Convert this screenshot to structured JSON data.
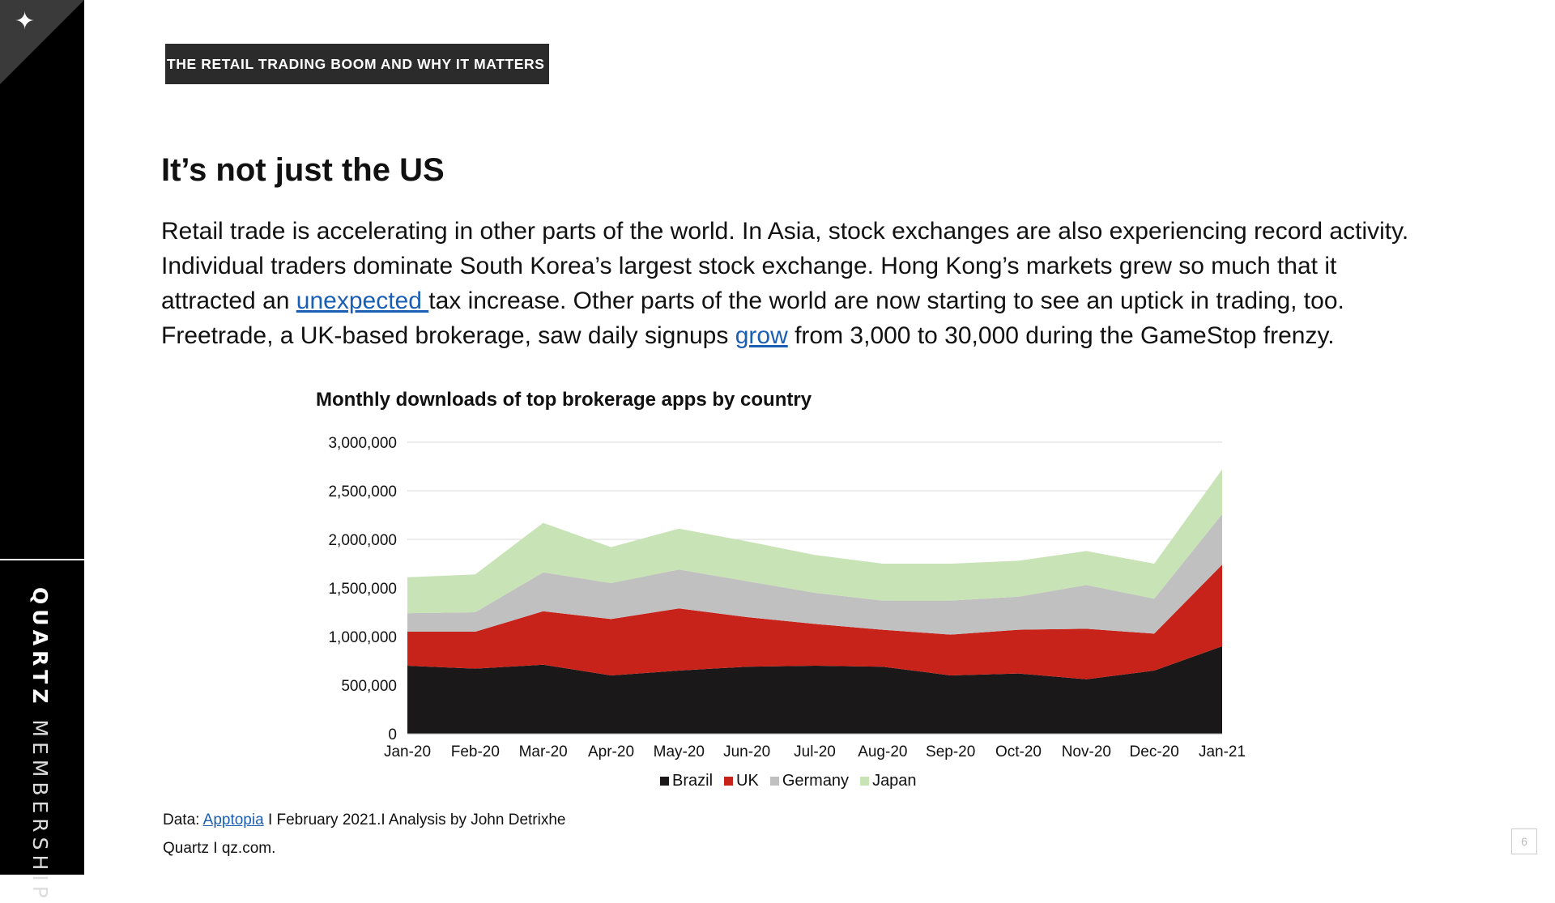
{
  "sidebar": {
    "brand_bold": "QUARTZ",
    "brand_rest": "MEMBERSHIP"
  },
  "header": {
    "kicker": "THE RETAIL TRADING BOOM AND WHY IT MATTERS"
  },
  "main": {
    "title": "It’s not just the US",
    "para_part1": "Retail trade is accelerating in other parts of the world. In Asia, stock exchanges are also experiencing record activity. Individual traders dominate South Korea’s largest stock exchange. Hong Kong’s markets grew so much that it attracted an ",
    "link1": "unexpected ",
    "para_part2": "tax increase. Other parts of the world are now starting to see an uptick in trading, too. Freetrade, a UK-based brokerage, saw daily signups ",
    "link2": "grow",
    "para_part3": " from 3,000 to 30,000 during the GameStop frenzy."
  },
  "footer": {
    "source_prefix": "Data: ",
    "source_link": "Apptopia",
    "source_suffix": " I February 2021.I Analysis by John Detrixhe",
    "credit": "Quartz I qz.com.",
    "page_number": "6"
  },
  "chart_data": {
    "type": "area",
    "stacked": true,
    "title": "Monthly downloads of top brokerage apps by country",
    "categories": [
      "Jan-20",
      "Feb-20",
      "Mar-20",
      "Apr-20",
      "May-20",
      "Jun-20",
      "Jul-20",
      "Aug-20",
      "Sep-20",
      "Oct-20",
      "Nov-20",
      "Dec-20",
      "Jan-21"
    ],
    "y_ticks": [
      "0",
      "500,000",
      "1,000,000",
      "1,500,000",
      "2,000,000",
      "2,500,000",
      "3,000,000"
    ],
    "ylim": [
      0,
      3000000
    ],
    "grid": true,
    "legend_position": "bottom",
    "series": [
      {
        "name": "Brazil",
        "color": "#1a1818",
        "values": [
          700000,
          670000,
          710000,
          600000,
          650000,
          690000,
          700000,
          690000,
          600000,
          620000,
          560000,
          650000,
          900000
        ]
      },
      {
        "name": "UK",
        "color": "#c8231b",
        "values": [
          350000,
          380000,
          550000,
          580000,
          640000,
          510000,
          430000,
          380000,
          420000,
          450000,
          520000,
          380000,
          840000
        ]
      },
      {
        "name": "Germany",
        "color": "#c0c0c0",
        "values": [
          190000,
          200000,
          400000,
          370000,
          400000,
          370000,
          320000,
          300000,
          350000,
          340000,
          450000,
          360000,
          520000
        ]
      },
      {
        "name": "Japan",
        "color": "#c8e3b5",
        "values": [
          370000,
          390000,
          510000,
          370000,
          420000,
          410000,
          390000,
          380000,
          380000,
          370000,
          350000,
          360000,
          460000
        ]
      }
    ]
  }
}
